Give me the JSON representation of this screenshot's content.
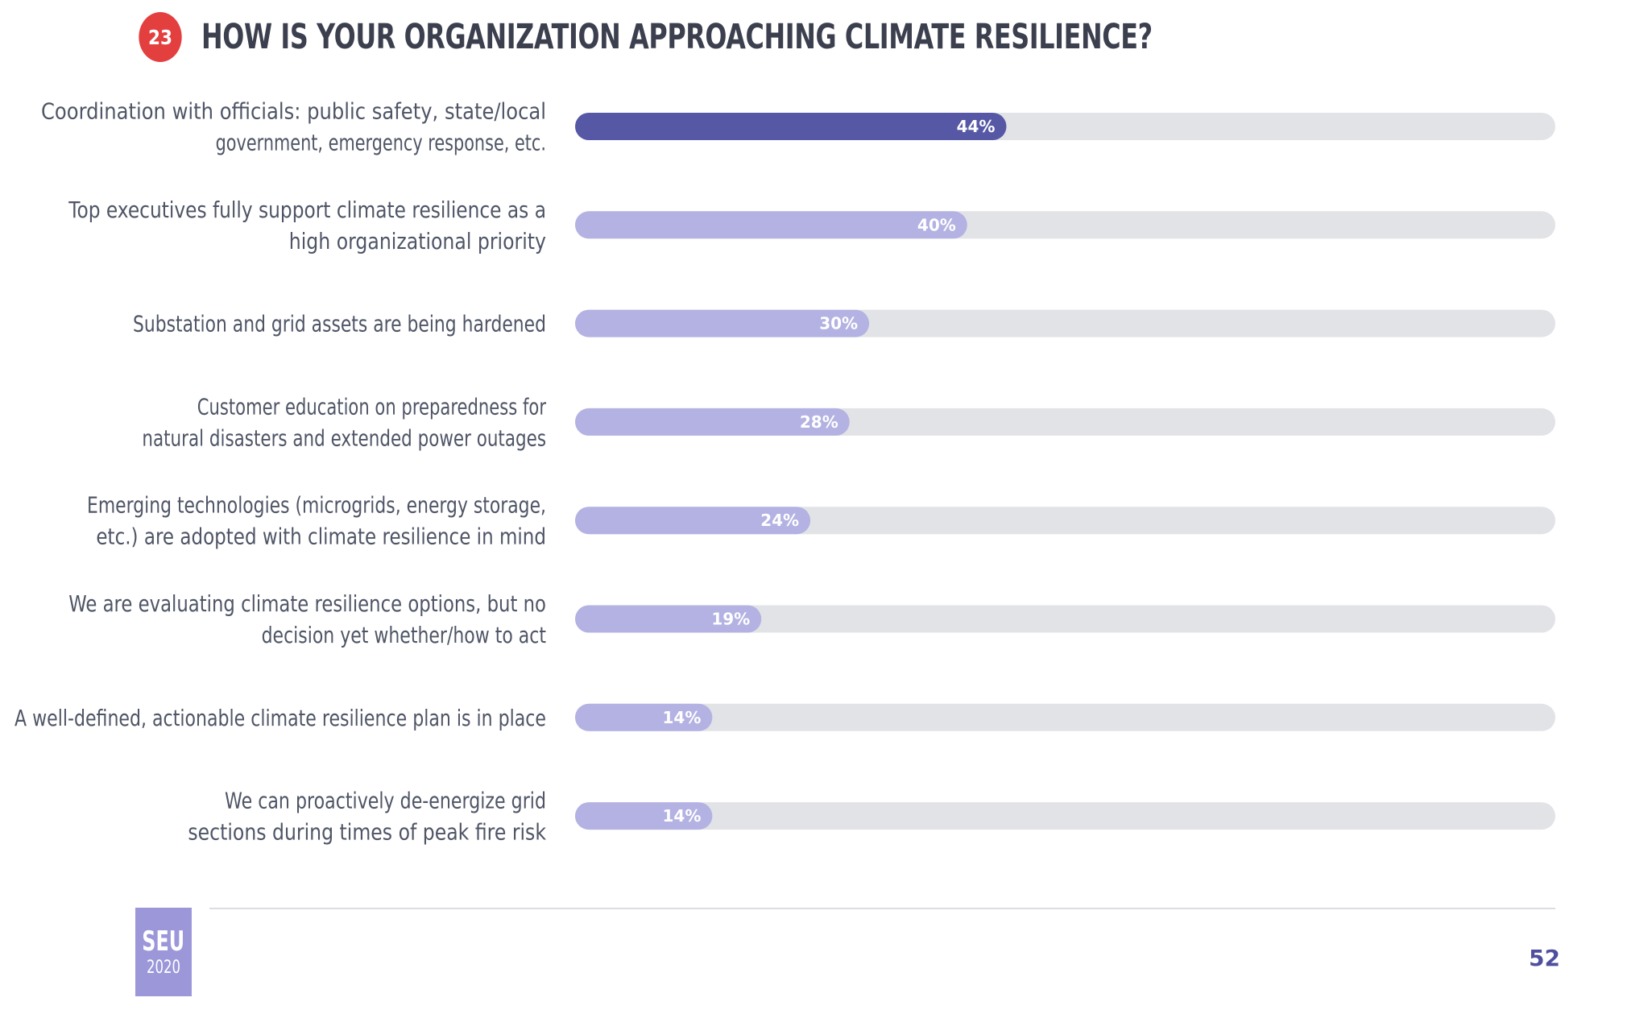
{
  "header": {
    "badge": "23",
    "title": "HOW IS YOUR ORGANIZATION APPROACHING CLIMATE RESILIENCE?"
  },
  "chart_data": {
    "type": "bar",
    "orientation": "horizontal",
    "title": "HOW IS YOUR ORGANIZATION APPROACHING CLIMATE RESILIENCE?",
    "categories": [
      [
        "Coordination with officials: public safety, state/local",
        "government, emergency response, etc."
      ],
      [
        "Top executives fully support climate resilience as a",
        "high organizational priority"
      ],
      [
        "Substation and grid assets are being hardened"
      ],
      [
        "Customer education on preparedness for",
        "natural disasters and extended power outages"
      ],
      [
        "Emerging technologies (microgrids, energy storage,",
        "etc.) are adopted with climate resilience in mind"
      ],
      [
        "We are evaluating climate resilience options, but no",
        "decision yet whether/how to act"
      ],
      [
        "A well-defined, actionable climate resilience plan is in place"
      ],
      [
        "We can proactively de-energize grid",
        "sections during times of peak fire risk"
      ]
    ],
    "values": [
      44,
      40,
      30,
      28,
      24,
      19,
      14,
      14
    ],
    "value_labels": [
      "44%",
      "40%",
      "30%",
      "28%",
      "24%",
      "19%",
      "14%",
      "14%"
    ],
    "xlim": [
      0,
      100
    ],
    "unit": "%",
    "grid": false,
    "legend": "none",
    "colors": {
      "highlight": "#5658a6",
      "bar": "#b3b2e2",
      "track": "#e2e3e6"
    }
  },
  "footer": {
    "logo_top": "SEU",
    "logo_bottom": "2020",
    "page_number": "52"
  }
}
